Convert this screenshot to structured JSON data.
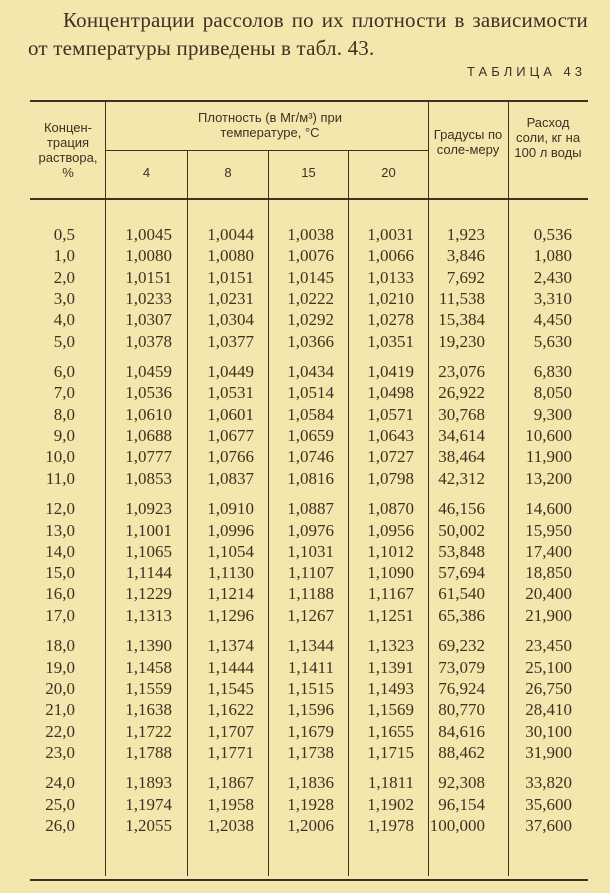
{
  "intro_text": "Концентрации рассолов по их плотности в зависимости от температуры приведены в табл. 43.",
  "table_caption": "ТАБЛИЦА 43",
  "headers": {
    "concentration": "Концен-трация раствора, %",
    "density_group": "Плотность (в Мг/м³) при температуре, °C",
    "temperatures": [
      "4",
      "8",
      "15",
      "20"
    ],
    "degrees": "Градусы по соле-меру",
    "salt_usage": "Расход соли, кг на 100 л воды"
  },
  "rows": [
    [
      "0,5",
      "1,0045",
      "1,0044",
      "1,0038",
      "1,0031",
      "1,923",
      "0,536"
    ],
    [
      "1,0",
      "1,0080",
      "1,0080",
      "1,0076",
      "1,0066",
      "3,846",
      "1,080"
    ],
    [
      "2,0",
      "1,0151",
      "1,0151",
      "1,0145",
      "1,0133",
      "7,692",
      "2,430"
    ],
    [
      "3,0",
      "1,0233",
      "1,0231",
      "1,0222",
      "1,0210",
      "11,538",
      "3,310"
    ],
    [
      "4,0",
      "1,0307",
      "1,0304",
      "1,0292",
      "1,0278",
      "15,384",
      "4,450"
    ],
    [
      "5,0",
      "1,0378",
      "1,0377",
      "1,0366",
      "1,0351",
      "19,230",
      "5,630"
    ],
    [
      "6,0",
      "1,0459",
      "1,0449",
      "1,0434",
      "1,0419",
      "23,076",
      "6,830"
    ],
    [
      "7,0",
      "1,0536",
      "1,0531",
      "1,0514",
      "1,0498",
      "26,922",
      "8,050"
    ],
    [
      "8,0",
      "1,0610",
      "1,0601",
      "1,0584",
      "1,0571",
      "30,768",
      "9,300"
    ],
    [
      "9,0",
      "1,0688",
      "1,0677",
      "1,0659",
      "1,0643",
      "34,614",
      "10,600"
    ],
    [
      "10,0",
      "1,0777",
      "1,0766",
      "1,0746",
      "1,0727",
      "38,464",
      "11,900"
    ],
    [
      "11,0",
      "1,0853",
      "1,0837",
      "1,0816",
      "1,0798",
      "42,312",
      "13,200"
    ],
    [
      "12,0",
      "1,0923",
      "1,0910",
      "1,0887",
      "1,0870",
      "46,156",
      "14,600"
    ],
    [
      "13,0",
      "1,1001",
      "1,0996",
      "1,0976",
      "1,0956",
      "50,002",
      "15,950"
    ],
    [
      "14,0",
      "1,1065",
      "1,1054",
      "1,1031",
      "1,1012",
      "53,848",
      "17,400"
    ],
    [
      "15,0",
      "1,1144",
      "1,1130",
      "1,1107",
      "1,1090",
      "57,694",
      "18,850"
    ],
    [
      "16,0",
      "1,1229",
      "1,1214",
      "1,1188",
      "1,1167",
      "61,540",
      "20,400"
    ],
    [
      "17,0",
      "1,1313",
      "1,1296",
      "1,1267",
      "1,1251",
      "65,386",
      "21,900"
    ],
    [
      "18,0",
      "1,1390",
      "1,1374",
      "1,1344",
      "1,1323",
      "69,232",
      "23,450"
    ],
    [
      "19,0",
      "1,1458",
      "1,1444",
      "1,1411",
      "1,1391",
      "73,079",
      "25,100"
    ],
    [
      "20,0",
      "1,1559",
      "1,1545",
      "1,1515",
      "1,1493",
      "76,924",
      "26,750"
    ],
    [
      "21,0",
      "1,1638",
      "1,1622",
      "1,1596",
      "1,1569",
      "80,770",
      "28,410"
    ],
    [
      "22,0",
      "1,1722",
      "1,1707",
      "1,1679",
      "1,1655",
      "84,616",
      "30,100"
    ],
    [
      "23,0",
      "1,1788",
      "1,1771",
      "1,1738",
      "1,1715",
      "88,462",
      "31,900"
    ],
    [
      "24,0",
      "1,1893",
      "1,1867",
      "1,1836",
      "1,1811",
      "92,308",
      "33,820"
    ],
    [
      "25,0",
      "1,1974",
      "1,1958",
      "1,1928",
      "1,1902",
      "96,154",
      "35,600"
    ],
    [
      "26,0",
      "1,2055",
      "1,2038",
      "1,2006",
      "1,1978",
      "100,000",
      "37,600"
    ]
  ]
}
